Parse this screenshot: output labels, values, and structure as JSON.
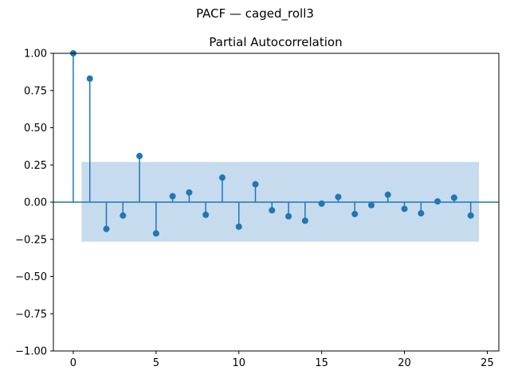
{
  "figure": {
    "suptitle": "PACF — caged_roll3"
  },
  "chart_data": {
    "type": "stem",
    "title": "Partial Autocorrelation",
    "xlabel": "",
    "ylabel": "",
    "x": [
      0,
      1,
      2,
      3,
      4,
      5,
      6,
      7,
      8,
      9,
      10,
      11,
      12,
      13,
      14,
      15,
      16,
      17,
      18,
      19,
      20,
      21,
      22,
      23,
      24
    ],
    "values": [
      1.0,
      0.83,
      -0.18,
      -0.09,
      0.31,
      -0.21,
      0.04,
      0.065,
      -0.085,
      0.165,
      -0.165,
      0.12,
      -0.055,
      -0.095,
      -0.125,
      -0.01,
      0.035,
      -0.08,
      -0.02,
      0.05,
      -0.045,
      -0.075,
      0.005,
      0.03,
      -0.09
    ],
    "confidence_band": {
      "lower": -0.265,
      "upper": 0.27,
      "x_start": 0.5,
      "x_end": 24.5
    },
    "xlim": [
      -1.2,
      25.7
    ],
    "ylim": [
      -1.0,
      1.0
    ],
    "xticks": [
      0,
      5,
      10,
      15,
      20,
      25
    ],
    "yticks": [
      -1.0,
      -0.75,
      -0.5,
      -0.25,
      0.0,
      0.25,
      0.5,
      0.75,
      1.0
    ],
    "ytick_labels": [
      "−1.00",
      "−0.75",
      "−0.50",
      "−0.25",
      "0.00",
      "0.25",
      "0.50",
      "0.75",
      "1.00"
    ],
    "xtick_labels": [
      "0",
      "5",
      "10",
      "15",
      "20",
      "25"
    ],
    "grid": false,
    "colors": {
      "stem": "#1f77b4",
      "band": "#c6dbed",
      "axis": "#000000"
    }
  }
}
